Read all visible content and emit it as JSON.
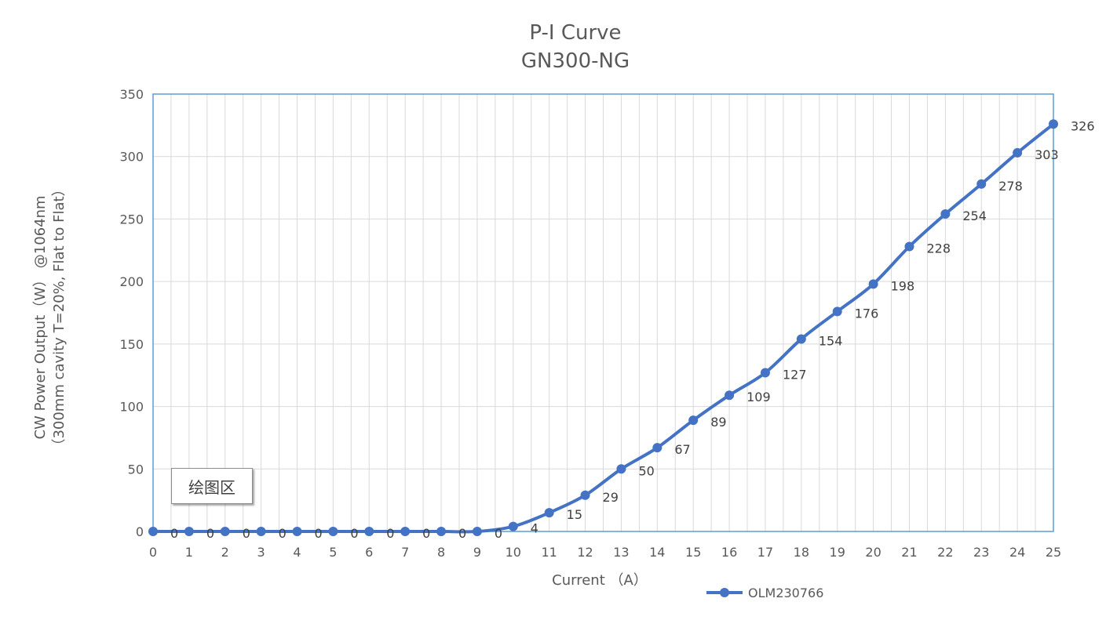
{
  "chart_data": {
    "type": "line",
    "title_line1": "P-I Curve",
    "title_line2": "GN300-NG",
    "xlabel": "Current （A）",
    "ylabel_line1": "CW Power Output（W） @1064nm",
    "ylabel_line2": "（300mm cavity T=20%, Flat to Flat）",
    "x": [
      0,
      1,
      2,
      3,
      4,
      5,
      6,
      7,
      8,
      9,
      10,
      11,
      12,
      13,
      14,
      15,
      16,
      17,
      18,
      19,
      20,
      21,
      22,
      23,
      24,
      25
    ],
    "series": [
      {
        "name": "OLM230766",
        "values": [
          0,
          0,
          0,
          0,
          0,
          0,
          0,
          0,
          0,
          0,
          4,
          15,
          29,
          50,
          67,
          89,
          109,
          127,
          154,
          176,
          198,
          228,
          254,
          278,
          303,
          326
        ]
      }
    ],
    "xlim": [
      0,
      25
    ],
    "ylim": [
      0,
      350
    ],
    "y_ticks": [
      0,
      50,
      100,
      150,
      200,
      250,
      300,
      350
    ],
    "grid": true,
    "legend_position": "bottom",
    "line_color": "#4472C4",
    "grid_color": "#D9D9D9",
    "plot_border_color": "#5B9BD5"
  },
  "tooltip": {
    "text": "绘图区"
  }
}
